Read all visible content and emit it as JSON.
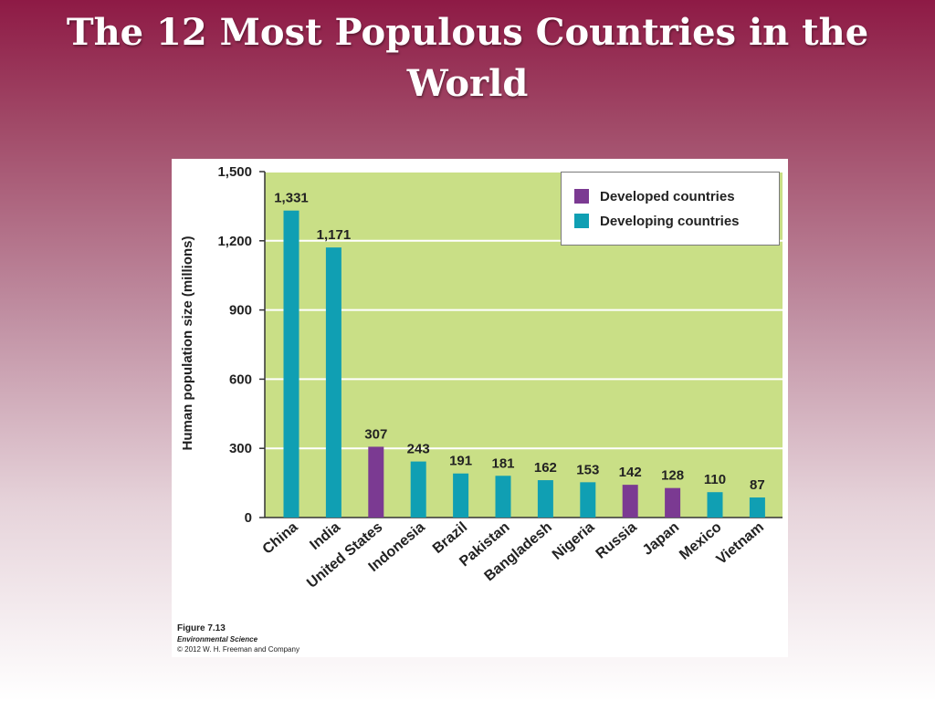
{
  "slide": {
    "title": "The 12 Most Populous Countries in the World"
  },
  "figure": {
    "number": "Figure 7.13",
    "source": "Environmental Science",
    "copyright": "© 2012 W. H. Freeman and Company"
  },
  "colors": {
    "developed": "#7b3a92",
    "developing": "#109fb3",
    "plot_background": "#c9df86",
    "gridline": "#ffffff"
  },
  "chart_data": {
    "type": "bar",
    "title": "",
    "xlabel": "",
    "ylabel": "Human population size (millions)",
    "ylim": [
      0,
      1500
    ],
    "yticks": [
      0,
      300,
      600,
      900,
      1200,
      1500
    ],
    "ytick_labels": [
      "0",
      "300",
      "600",
      "900",
      "1,200",
      "1,500"
    ],
    "grid": true,
    "legend_position": "top-right",
    "categories": [
      "China",
      "India",
      "United States",
      "Indonesia",
      "Brazil",
      "Pakistan",
      "Bangladesh",
      "Nigeria",
      "Russia",
      "Japan",
      "Mexico",
      "Vietnam"
    ],
    "values": [
      1331,
      1171,
      307,
      243,
      191,
      181,
      162,
      153,
      142,
      128,
      110,
      87
    ],
    "value_labels": [
      "1,331",
      "1,171",
      "307",
      "243",
      "191",
      "181",
      "162",
      "153",
      "142",
      "128",
      "110",
      "87"
    ],
    "groups": [
      "developing",
      "developing",
      "developed",
      "developing",
      "developing",
      "developing",
      "developing",
      "developing",
      "developed",
      "developed",
      "developing",
      "developing"
    ],
    "legend": [
      {
        "key": "developed",
        "label": "Developed countries"
      },
      {
        "key": "developing",
        "label": "Developing countries"
      }
    ]
  }
}
